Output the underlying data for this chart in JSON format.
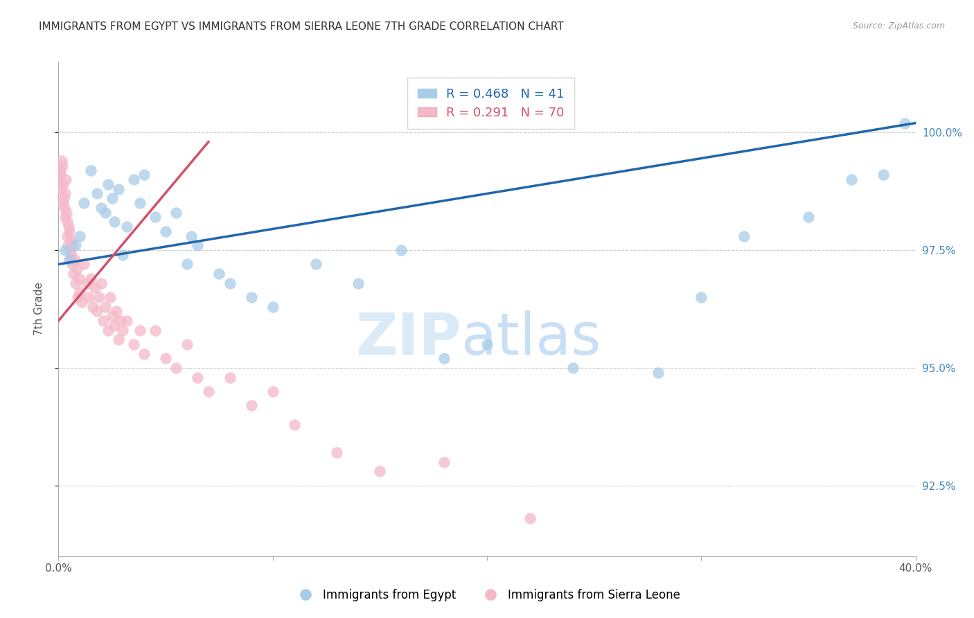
{
  "title": "IMMIGRANTS FROM EGYPT VS IMMIGRANTS FROM SIERRA LEONE 7TH GRADE CORRELATION CHART",
  "source": "Source: ZipAtlas.com",
  "ylabel": "7th Grade",
  "legend_label_blue": "Immigrants from Egypt",
  "legend_label_pink": "Immigrants from Sierra Leone",
  "R_blue": 0.468,
  "N_blue": 41,
  "R_pink": 0.291,
  "N_pink": 70,
  "xlim": [
    0.0,
    40.0
  ],
  "ylim": [
    91.0,
    101.5
  ],
  "color_blue": "#a8cce8",
  "color_pink": "#f5b8c8",
  "color_line_blue": "#2166ac",
  "color_line_pink": "#d4506a",
  "watermark_zip": "ZIP",
  "watermark_atlas": "atlas",
  "watermark_color": "#daeaf7",
  "title_color": "#333333",
  "right_axis_color": "#4488bb",
  "blue_scatter_x": [
    0.3,
    0.5,
    0.8,
    1.0,
    1.2,
    1.5,
    1.8,
    2.0,
    2.2,
    2.5,
    2.8,
    3.0,
    3.2,
    3.5,
    4.0,
    4.5,
    5.0,
    5.5,
    6.0,
    6.5,
    7.5,
    8.0,
    9.0,
    10.0,
    12.0,
    14.0,
    16.0,
    20.0,
    24.0,
    28.0,
    30.0,
    32.0,
    35.0,
    37.0,
    38.5,
    39.5,
    2.3,
    2.6,
    3.8,
    6.2,
    18.0
  ],
  "blue_scatter_y": [
    97.5,
    97.3,
    97.6,
    97.8,
    98.5,
    99.2,
    98.7,
    98.4,
    98.3,
    98.6,
    98.8,
    97.4,
    98.0,
    99.0,
    99.1,
    98.2,
    97.9,
    98.3,
    97.2,
    97.6,
    97.0,
    96.8,
    96.5,
    96.3,
    97.2,
    96.8,
    97.5,
    95.5,
    95.0,
    94.9,
    96.5,
    97.8,
    98.2,
    99.0,
    99.1,
    100.2,
    98.9,
    98.1,
    98.5,
    97.8,
    95.2
  ],
  "pink_scatter_x": [
    0.05,
    0.08,
    0.1,
    0.12,
    0.15,
    0.18,
    0.2,
    0.22,
    0.25,
    0.28,
    0.3,
    0.32,
    0.35,
    0.38,
    0.4,
    0.42,
    0.45,
    0.48,
    0.5,
    0.52,
    0.55,
    0.58,
    0.6,
    0.62,
    0.65,
    0.7,
    0.75,
    0.8,
    0.85,
    0.9,
    0.95,
    1.0,
    1.1,
    1.2,
    1.3,
    1.4,
    1.5,
    1.6,
    1.7,
    1.8,
    1.9,
    2.0,
    2.1,
    2.2,
    2.3,
    2.4,
    2.5,
    2.6,
    2.7,
    2.8,
    2.9,
    3.0,
    3.2,
    3.5,
    3.8,
    4.0,
    4.5,
    5.0,
    5.5,
    6.0,
    6.5,
    7.0,
    8.0,
    9.0,
    10.0,
    11.0,
    13.0,
    15.0,
    18.0,
    22.0
  ],
  "pink_scatter_y": [
    99.0,
    99.2,
    99.1,
    98.8,
    99.4,
    99.3,
    98.5,
    98.9,
    98.6,
    98.4,
    98.2,
    98.7,
    99.0,
    98.3,
    97.8,
    98.1,
    97.6,
    98.0,
    97.5,
    97.9,
    97.3,
    97.7,
    97.4,
    97.2,
    97.6,
    97.0,
    97.3,
    96.8,
    97.1,
    96.5,
    96.9,
    96.6,
    96.4,
    97.2,
    96.8,
    96.5,
    96.9,
    96.3,
    96.7,
    96.2,
    96.5,
    96.8,
    96.0,
    96.3,
    95.8,
    96.5,
    96.1,
    95.9,
    96.2,
    95.6,
    96.0,
    95.8,
    96.0,
    95.5,
    95.8,
    95.3,
    95.8,
    95.2,
    95.0,
    95.5,
    94.8,
    94.5,
    94.8,
    94.2,
    94.5,
    93.8,
    93.2,
    92.8,
    93.0,
    91.8
  ],
  "trend_blue_x0": 0.0,
  "trend_blue_y0": 97.2,
  "trend_blue_x1": 40.0,
  "trend_blue_y1": 100.2,
  "trend_pink_x0": 0.0,
  "trend_pink_y0": 96.0,
  "trend_pink_x1": 7.0,
  "trend_pink_y1": 99.8
}
